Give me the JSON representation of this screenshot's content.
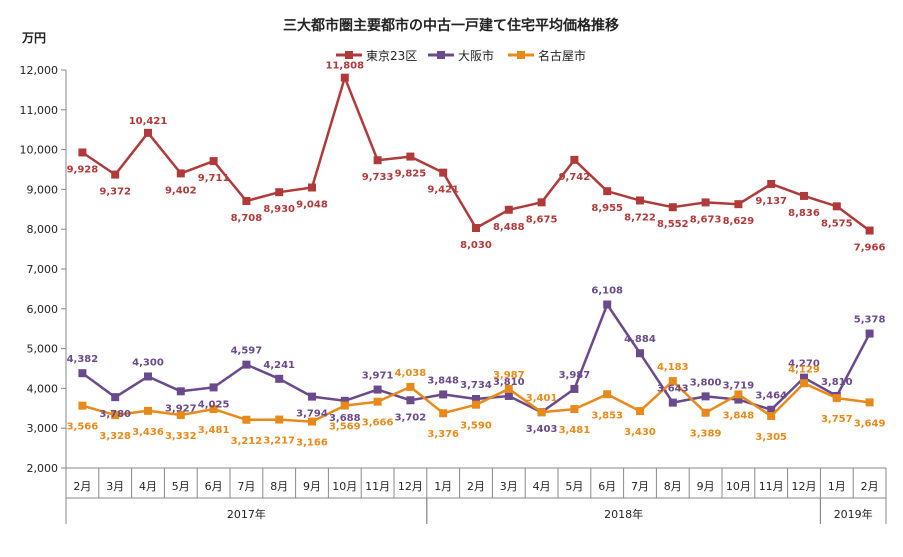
{
  "chart_data": {
    "type": "line",
    "title": "三大都市圏主要都市の中古一戸建て住宅平均価格推移",
    "ylabel": "万円",
    "ylim": [
      2000,
      12000
    ],
    "yticks": [
      "2,000",
      "3,000",
      "4,000",
      "5,000",
      "6,000",
      "7,000",
      "8,000",
      "9,000",
      "10,000",
      "11,000",
      "12,000"
    ],
    "categories": [
      "2月",
      "3月",
      "4月",
      "5月",
      "6月",
      "7月",
      "8月",
      "9月",
      "10月",
      "11月",
      "12月",
      "1月",
      "2月",
      "3月",
      "4月",
      "5月",
      "6月",
      "7月",
      "8月",
      "9月",
      "10月",
      "11月",
      "12月",
      "1月",
      "2月"
    ],
    "year_groups": [
      {
        "label": "2017年",
        "start": 0,
        "end": 10
      },
      {
        "label": "2018年",
        "start": 11,
        "end": 22
      },
      {
        "label": "2019年",
        "start": 23,
        "end": 24
      }
    ],
    "legend_position": "top-center",
    "grid": false,
    "series": [
      {
        "name": "東京23区",
        "color": "#b03a3a",
        "marker": "square",
        "values": [
          9928,
          9372,
          10421,
          9402,
          9711,
          8708,
          8930,
          9048,
          11808,
          9733,
          9825,
          9421,
          8030,
          8488,
          8675,
          9742,
          8955,
          8722,
          8552,
          8673,
          8629,
          9137,
          8836,
          8575,
          7966
        ],
        "labels": [
          "9,928",
          "9,372",
          "10,421",
          "9,402",
          "9,711",
          "8,708",
          "8,930",
          "9,048",
          "11,808",
          "9,733",
          "9,825",
          "9,421",
          "8,030",
          "8,488",
          "8,675",
          "9,742",
          "8,955",
          "8,722",
          "8,552",
          "8,673",
          "8,629",
          "9,137",
          "8,836",
          "8,575",
          "7,966"
        ]
      },
      {
        "name": "大阪市",
        "color": "#6a4a8c",
        "marker": "square",
        "values": [
          4382,
          3780,
          4300,
          3927,
          4025,
          4597,
          4241,
          3794,
          3688,
          3971,
          3702,
          3848,
          3734,
          3810,
          3403,
          3987,
          6108,
          4884,
          3643,
          3800,
          3719,
          3464,
          4270,
          3810,
          5378
        ],
        "labels": [
          "4,382",
          "3,780",
          "4,300",
          "3,927",
          "4,025",
          "4,597",
          "4,241",
          "3,794",
          "3,688",
          "3,971",
          "3,702",
          "3,848",
          "3,734",
          "3,810",
          "3,403",
          "3,987",
          "6,108",
          "4,884",
          "3,643",
          "3,800",
          "3,719",
          "3,464",
          "4,270",
          "3,810",
          "5,378"
        ]
      },
      {
        "name": "名古屋市",
        "color": "#e88a1a",
        "marker": "square",
        "values": [
          3566,
          3328,
          3436,
          3332,
          3481,
          3212,
          3217,
          3166,
          3569,
          3666,
          4038,
          3376,
          3590,
          3987,
          3401,
          3481,
          3853,
          3430,
          4183,
          3389,
          3848,
          3305,
          4129,
          3757,
          3649
        ],
        "labels": [
          "3,566",
          "3,328",
          "3,436",
          "3,332",
          "3,481",
          "3,212",
          "3,217",
          "3,166",
          "3,569",
          "3,666",
          "4,038",
          "3,376",
          "3,590",
          "3,987",
          "3,401",
          "3,481",
          "3,853",
          "3,430",
          "4,183",
          "3,389",
          "3,848",
          "3,305",
          "4,129",
          "3,757",
          "3,649"
        ]
      }
    ]
  }
}
